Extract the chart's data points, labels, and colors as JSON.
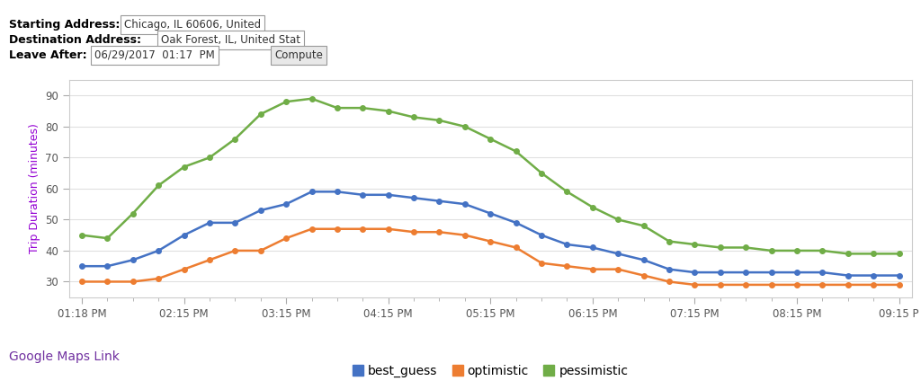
{
  "starting_address": "Chicago, IL 60606, United",
  "destination_address": "Oak Forest, IL, United Stat",
  "leave_after": "06/29/2017  01:17  PM",
  "ylabel": "Trip Duration (minutes)",
  "ylabel_color": "#9400D3",
  "background_color": "#ffffff",
  "grid_color": "#e0e0e0",
  "ylim": [
    25,
    95
  ],
  "yticks": [
    30,
    40,
    50,
    60,
    70,
    80,
    90
  ],
  "x_labels": [
    "01:18 PM",
    "02:15 PM",
    "03:15 PM",
    "04:15 PM",
    "05:15 PM",
    "06:15 PM",
    "07:15 PM",
    "08:15 PM",
    "09:15 P"
  ],
  "best_guess": [
    35,
    35,
    37,
    40,
    45,
    49,
    49,
    53,
    55,
    59,
    59,
    58,
    58,
    57,
    56,
    55,
    52,
    49,
    45,
    42,
    41,
    39,
    37,
    34,
    33,
    33,
    33,
    33,
    33,
    33,
    32,
    32,
    32
  ],
  "optimistic": [
    30,
    30,
    30,
    31,
    34,
    37,
    40,
    40,
    44,
    47,
    47,
    47,
    47,
    46,
    46,
    45,
    43,
    41,
    36,
    35,
    34,
    34,
    32,
    30,
    29,
    29,
    29,
    29,
    29,
    29,
    29,
    29,
    29
  ],
  "pessimistic": [
    45,
    44,
    52,
    61,
    67,
    70,
    76,
    84,
    88,
    89,
    86,
    86,
    85,
    83,
    82,
    80,
    76,
    72,
    65,
    59,
    54,
    50,
    48,
    43,
    42,
    41,
    41,
    40,
    40,
    40,
    39,
    39,
    39
  ],
  "line_colors": {
    "best_guess": "#4472c4",
    "optimistic": "#ed7d31",
    "pessimistic": "#70ad47"
  },
  "marker_size": 4,
  "line_width": 1.8,
  "legend_fontsize": 10,
  "tick_fontsize": 8.5,
  "ylabel_fontsize": 9,
  "google_maps_color": "#7030a0",
  "google_maps_text": "Google Maps Link",
  "num_points": 33,
  "x_tick_positions": [
    0,
    4,
    8,
    12,
    16,
    20,
    24,
    28,
    32
  ]
}
